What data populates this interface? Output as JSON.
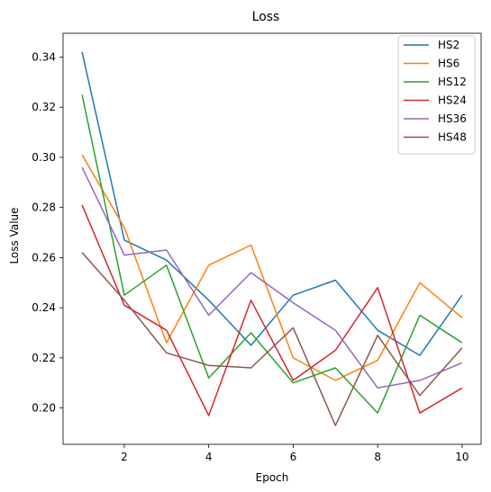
{
  "chart_data": {
    "type": "line",
    "title": "Loss",
    "xlabel": "Epoch",
    "ylabel": "Loss Value",
    "x": [
      1,
      2,
      3,
      4,
      5,
      6,
      7,
      8,
      9,
      10
    ],
    "xlim": [
      0.55,
      10.45
    ],
    "ylim": [
      0.1855,
      0.3495
    ],
    "xticks": [
      2,
      4,
      6,
      8,
      10
    ],
    "yticks": [
      0.2,
      0.22,
      0.24,
      0.26,
      0.28,
      0.3,
      0.32,
      0.34
    ],
    "ytick_labels": [
      "0.20",
      "0.22",
      "0.24",
      "0.26",
      "0.28",
      "0.30",
      "0.32",
      "0.34"
    ],
    "grid": false,
    "legend_position": "top-right",
    "series": [
      {
        "name": "HS2",
        "color": "#1f77b4",
        "values": [
          0.342,
          0.267,
          0.259,
          0.243,
          0.225,
          0.245,
          0.251,
          0.231,
          0.221,
          0.245
        ]
      },
      {
        "name": "HS6",
        "color": "#ff7f0e",
        "values": [
          0.301,
          0.272,
          0.226,
          0.257,
          0.265,
          0.22,
          0.211,
          0.219,
          0.25,
          0.236
        ]
      },
      {
        "name": "HS12",
        "color": "#2ca02c",
        "values": [
          0.325,
          0.245,
          0.257,
          0.212,
          0.23,
          0.21,
          0.216,
          0.198,
          0.237,
          0.226
        ]
      },
      {
        "name": "HS24",
        "color": "#d62728",
        "values": [
          0.281,
          0.241,
          0.231,
          0.197,
          0.243,
          0.211,
          0.223,
          0.248,
          0.198,
          0.208
        ]
      },
      {
        "name": "HS36",
        "color": "#9467bd",
        "values": [
          0.296,
          0.261,
          0.263,
          0.237,
          0.254,
          0.242,
          0.231,
          0.208,
          0.211,
          0.218
        ]
      },
      {
        "name": "HS48",
        "color": "#8c564b",
        "values": [
          0.262,
          0.243,
          0.222,
          0.217,
          0.216,
          0.232,
          0.193,
          0.229,
          0.205,
          0.224
        ]
      }
    ]
  }
}
